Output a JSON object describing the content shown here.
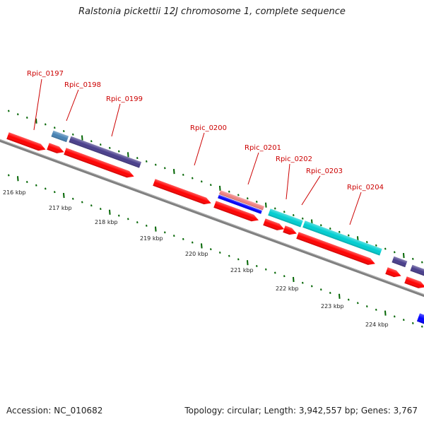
{
  "title": "Ralstonia pickettii 12J chromosome 1, complete sequence",
  "footer": {
    "accession": "Accession: NC_010682",
    "summary": "Topology: circular; Length: 3,942,557 bp; Genes: 3,767"
  },
  "gene_labels": [
    "Rpic_0197",
    "Rpic_0198",
    "Rpic_0199",
    "Rpic_0200",
    "Rpic_0201",
    "Rpic_0202",
    "Rpic_0203",
    "Rpic_0204"
  ],
  "scale_labels": [
    "216 kbp",
    "217 kbp",
    "218 kbp",
    "219 kbp",
    "220 kbp",
    "221 kbp",
    "222 kbp",
    "223 kbp",
    "224 kbp"
  ],
  "colors": {
    "cds_red": "#ff0000",
    "light_blue": "#4682b4",
    "dark_slate_blue": "#483d8b",
    "cyan": "#00ced1",
    "blue": "#0000ff",
    "pink": "#f08080",
    "backbone": "#808080",
    "tick_green": "#006400",
    "label_red": "#cc0000"
  }
}
